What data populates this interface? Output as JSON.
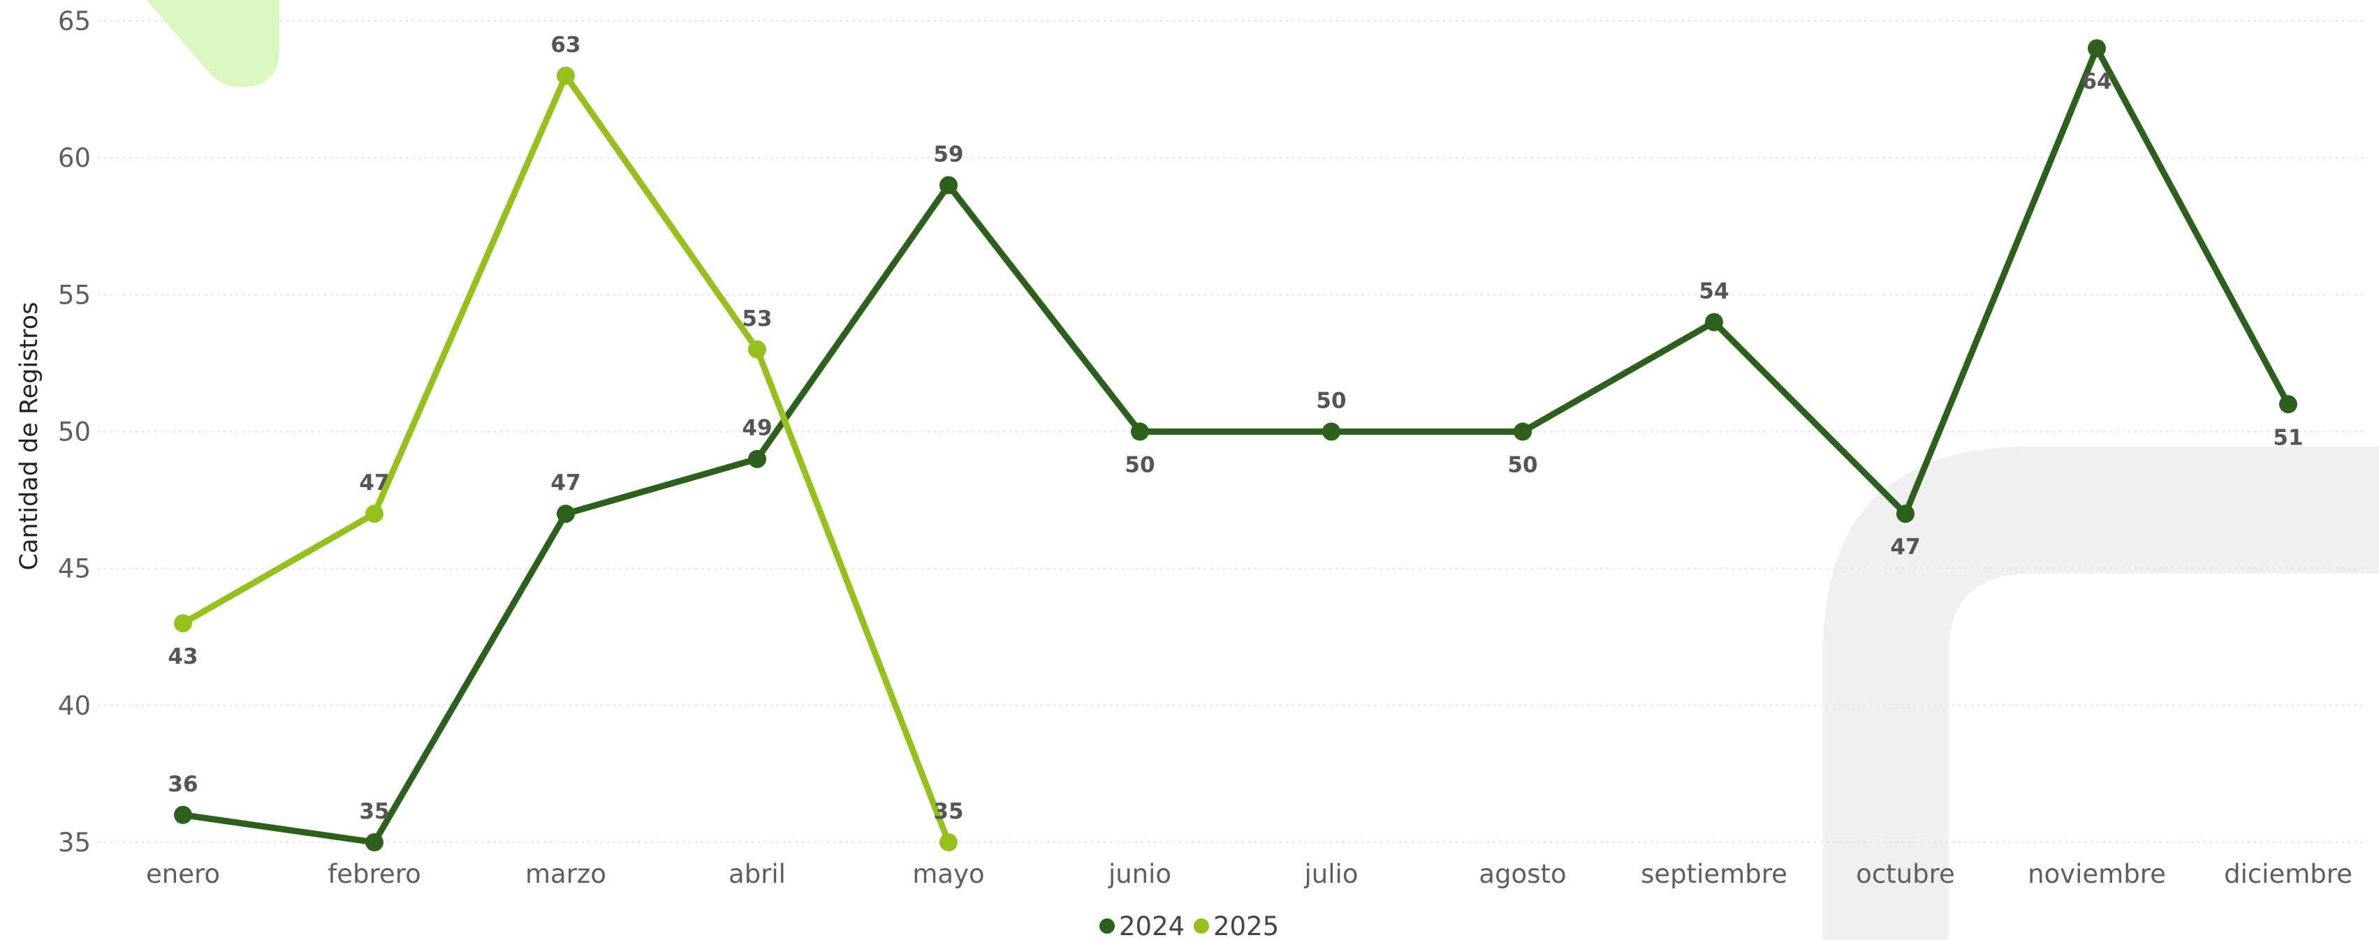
{
  "chart_data": {
    "type": "line",
    "ylabel": "Cantidad de Registros",
    "ylim": [
      35,
      65
    ],
    "yticks": [
      "35",
      "40",
      "45",
      "50",
      "55",
      "60",
      "65"
    ],
    "grid": true,
    "legend": "bottom-center",
    "categories": [
      "enero",
      "febrero",
      "marzo",
      "abril",
      "mayo",
      "junio",
      "julio",
      "agosto",
      "septiembre",
      "octubre",
      "noviembre",
      "diciembre"
    ],
    "series": [
      {
        "name": "2024",
        "color": "#2d5f1d",
        "values": [
          36,
          35,
          47,
          49,
          59,
          50,
          50,
          50,
          54,
          47,
          64,
          51
        ],
        "label_positions": [
          "above",
          "above",
          "above",
          "above",
          "above",
          "below",
          "above",
          "below",
          "above",
          "below",
          "below",
          "below"
        ]
      },
      {
        "name": "2025",
        "color": "#95c11f",
        "values": [
          43,
          47,
          63,
          53,
          35,
          null,
          null,
          null,
          null,
          null,
          null,
          null
        ],
        "label_positions": [
          "below",
          "above",
          "above",
          "above",
          "above"
        ]
      }
    ]
  },
  "decor": {
    "shape_color_light": "#d9f7bf",
    "shape_color_gray": "#efefef"
  }
}
